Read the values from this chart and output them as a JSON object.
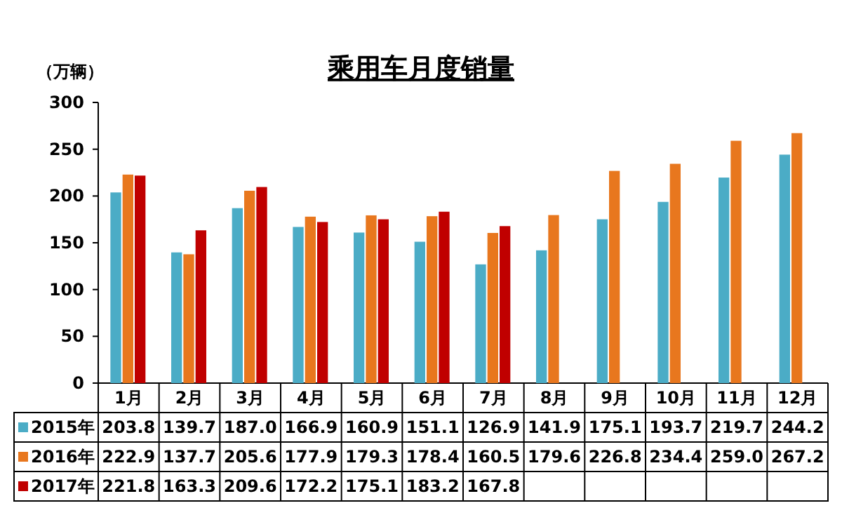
{
  "chart_data": {
    "type": "bar",
    "title": "乘用车月度销量",
    "ylabel": "（万辆）",
    "categories": [
      "1月",
      "2月",
      "3月",
      "4月",
      "5月",
      "6月",
      "7月",
      "8月",
      "9月",
      "10月",
      "11月",
      "12月"
    ],
    "series": [
      {
        "name": "2015年",
        "color": "#4bacc6",
        "values": [
          203.8,
          139.7,
          187.0,
          166.9,
          160.9,
          151.1,
          126.9,
          141.9,
          175.1,
          193.7,
          219.7,
          244.2
        ],
        "value_labels": [
          "203.8",
          "139.7",
          "187.0",
          "166.9",
          "160.9",
          "151.1",
          "126.9",
          "141.9",
          "175.1",
          "193.7",
          "219.7",
          "244.2"
        ]
      },
      {
        "name": "2016年",
        "color": "#e8771e",
        "values": [
          222.9,
          137.7,
          205.6,
          177.9,
          179.3,
          178.4,
          160.5,
          179.6,
          226.8,
          234.4,
          259.0,
          267.2
        ],
        "value_labels": [
          "222.9",
          "137.7",
          "205.6",
          "177.9",
          "179.3",
          "178.4",
          "160.5",
          "179.6",
          "226.8",
          "234.4",
          "259.0",
          "267.2"
        ]
      },
      {
        "name": "2017年",
        "color": "#c00000",
        "values": [
          221.8,
          163.3,
          209.6,
          172.2,
          175.1,
          183.2,
          167.8,
          null,
          null,
          null,
          null,
          null
        ],
        "value_labels": [
          "221.8",
          "163.3",
          "209.6",
          "172.2",
          "175.1",
          "183.2",
          "167.8",
          null,
          null,
          null,
          null,
          null
        ]
      }
    ],
    "ylim": [
      0,
      300
    ],
    "yticks": [
      0,
      50,
      100,
      150,
      200,
      250,
      300
    ],
    "legend": "bottom",
    "grid": false
  }
}
